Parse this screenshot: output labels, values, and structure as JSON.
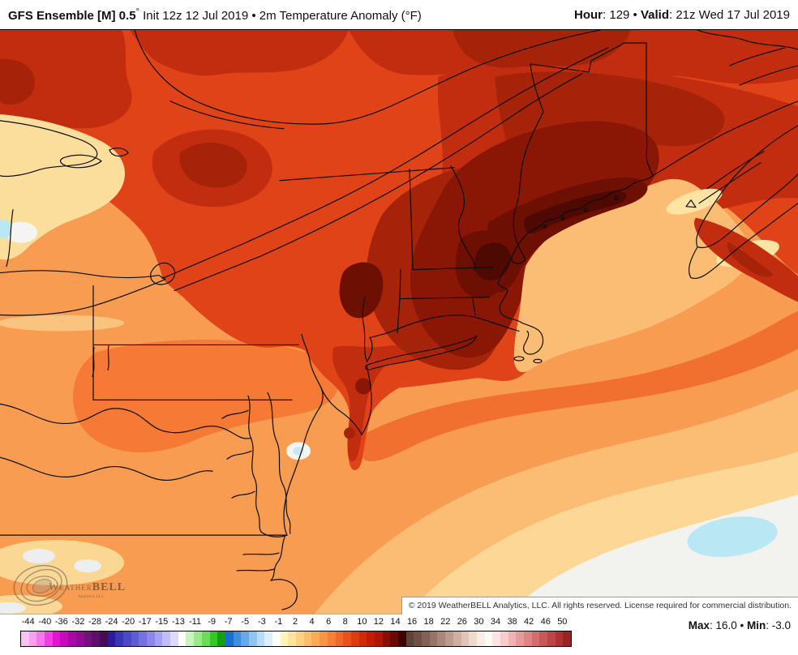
{
  "header": {
    "title_bold": "GFS Ensemble [M] 0.5",
    "title_degree": "°",
    "title_rest": " Init 12z 12 Jul 2019 • 2m Temperature Anomaly (°F)",
    "hour_label": "Hour",
    "hour_rest": ": 129 ",
    "sep": "• ",
    "valid_label": "Valid",
    "valid_rest": ": 21z Wed 17 Jul 2019"
  },
  "map": {
    "watermark": {
      "name_serif": "Weather",
      "name_bold": "BELL",
      "subtitle": "Analytics LLC"
    },
    "copyright": "© 2019 WeatherBELL Analytics, LLC. All rights reserved. License required for commercial distribution."
  },
  "legend": {
    "title": "2m Temperature Anomaly (°F)",
    "ticks": [
      "-44",
      "-40",
      "-36",
      "-32",
      "-28",
      "-24",
      "-20",
      "-17",
      "-15",
      "-13",
      "-11",
      "-9",
      "-7",
      "-5",
      "-3",
      "-1",
      "2",
      "4",
      "6",
      "8",
      "10",
      "12",
      "14",
      "16",
      "18",
      "22",
      "26",
      "30",
      "34",
      "38",
      "42",
      "46",
      "50"
    ],
    "colors": [
      "#FBC2F4",
      "#F9A0F0",
      "#F677EA",
      "#F23DE2",
      "#E312D4",
      "#C70ABC",
      "#AB08A8",
      "#900C93",
      "#77107F",
      "#5D0F69",
      "#470D53",
      "#2A1C9C",
      "#3A35B6",
      "#4B48C9",
      "#5F5BD7",
      "#7571E2",
      "#8D87EC",
      "#A7A0F3",
      "#C2BCF9",
      "#DEDAFD",
      "#FFFFFF",
      "#C8F5BE",
      "#9BE98D",
      "#6ADC58",
      "#2FCB20",
      "#12A014",
      "#1C6FD0",
      "#3E8EDF",
      "#66A9EA",
      "#90C5F1",
      "#B8DCF8",
      "#DCEFFC",
      "#FFFFFF",
      "#FFF3B8",
      "#FEE49A",
      "#FDD27F",
      "#FCBF68",
      "#FAAB55",
      "#F89544",
      "#F57F35",
      "#F06827",
      "#E85119",
      "#DE3B0E",
      "#D22906",
      "#C41B03",
      "#B01605",
      "#8C0E03",
      "#6B0A02",
      "#3F0300",
      "#5E4337",
      "#705146",
      "#836156",
      "#967367",
      "#A98679",
      "#BC9A8C",
      "#CFAFA0",
      "#E0C5B6",
      "#EFDACC",
      "#FAEEE4",
      "#FFF9F5",
      "#FCE4E4",
      "#F8CCCC",
      "#F0B3B3",
      "#E89B9B",
      "#DE8484",
      "#D46E6E",
      "#C95858",
      "#BC4444",
      "#AE3232",
      "#9E2222"
    ]
  },
  "stats": {
    "max_label": "Max",
    "max_rest": ": 16.0 ",
    "sep": "• ",
    "min_label": "Min",
    "min_rest": ": -3.0"
  }
}
